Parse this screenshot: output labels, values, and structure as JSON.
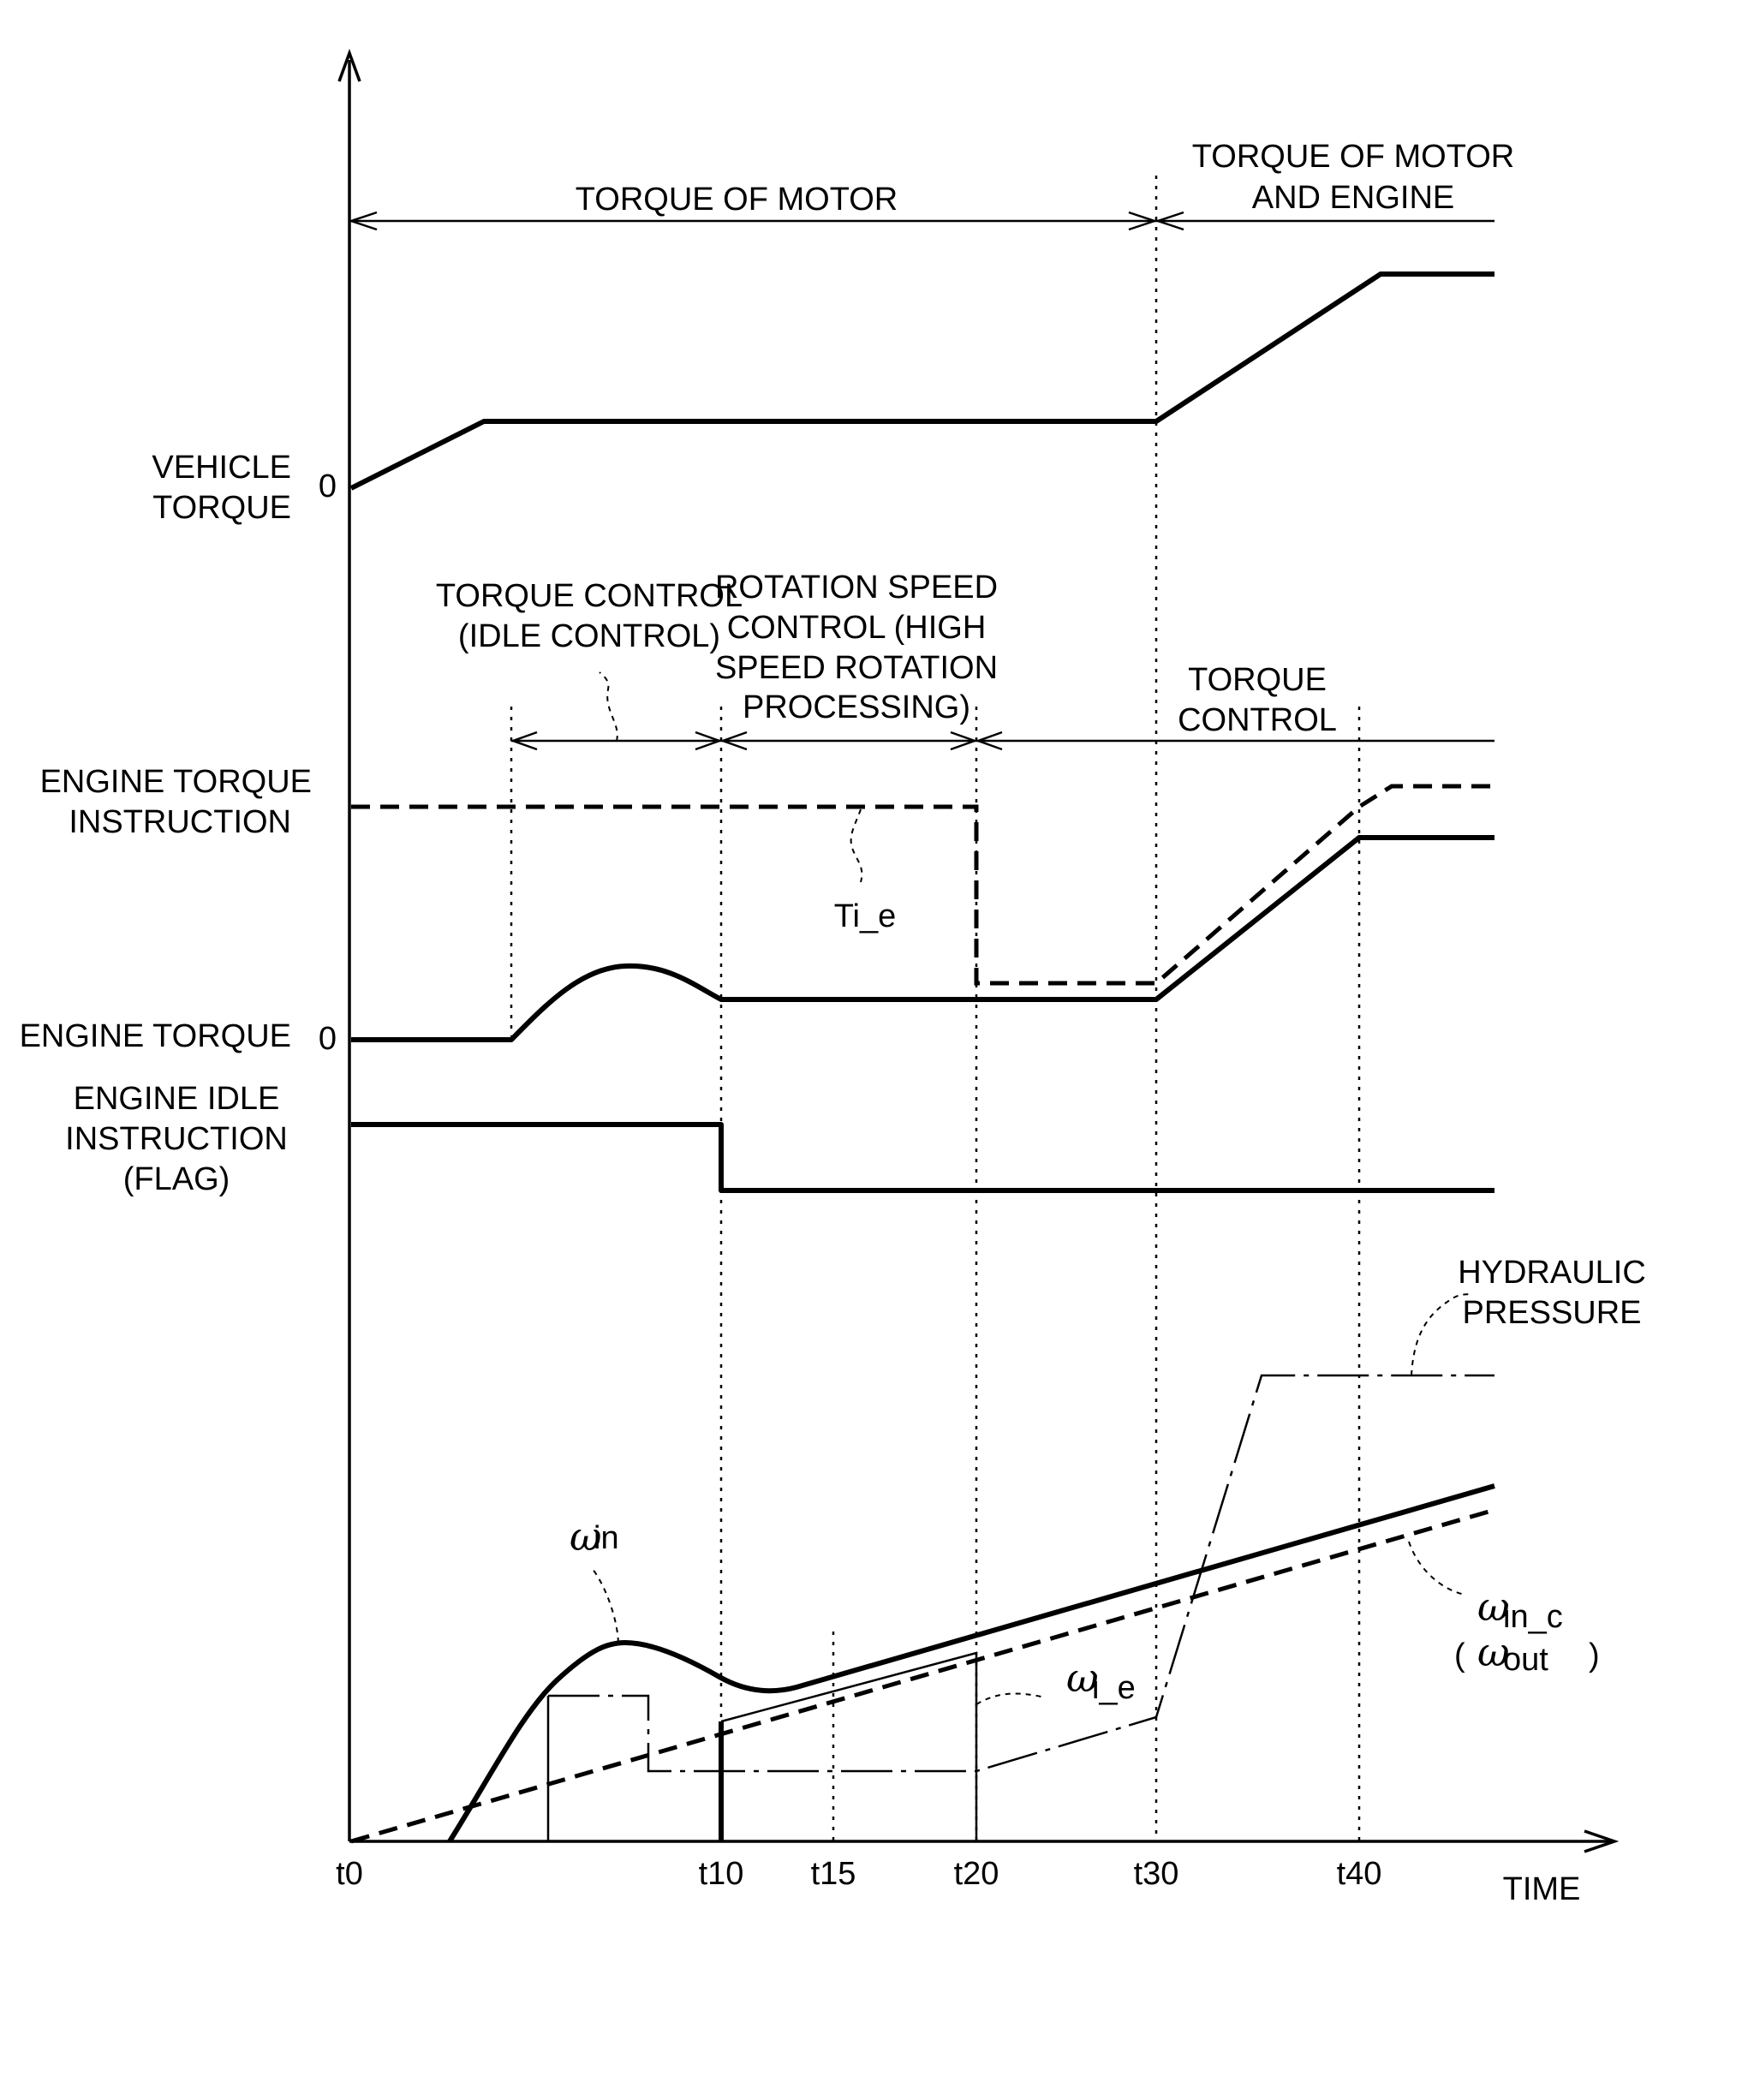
{
  "time_axis": {
    "label": "TIME",
    "ticks": [
      "t0",
      "t10",
      "t15",
      "t20",
      "t30",
      "t40"
    ]
  },
  "phases": {
    "motor": "TORQUE OF MOTOR",
    "motor_engine_1": "TORQUE OF MOTOR",
    "motor_engine_2": "AND ENGINE",
    "torque_idle_1": "TORQUE CONTROL",
    "torque_idle_2": "(IDLE CONTROL)",
    "rotation_1": "ROTATION SPEED",
    "rotation_2": "CONTROL (HIGH",
    "rotation_3": "SPEED ROTATION",
    "rotation_4": "PROCESSING)",
    "torque_control_1": "TORQUE",
    "torque_control_2": "CONTROL"
  },
  "row_labels": {
    "vehicle_torque_1": "VEHICLE",
    "vehicle_torque_2": "TORQUE",
    "vehicle_zero": "0",
    "engine_torque_instruction_1": "ENGINE TORQUE",
    "engine_torque_instruction_2": "INSTRUCTION",
    "engine_torque": "ENGINE TORQUE",
    "engine_torque_zero": "0",
    "engine_idle_1": "ENGINE IDLE",
    "engine_idle_2": "INSTRUCTION",
    "engine_idle_3": "(FLAG)"
  },
  "curve_labels": {
    "ti_e": "Ti_e",
    "hydraulic_1": "HYDRAULIC",
    "hydraulic_2": "PRESSURE",
    "omega_in": "ω",
    "omega_in_sub": "in",
    "omega_ie": "ω",
    "omega_ie_sub": "i_e",
    "omega_in_c": "ω",
    "omega_in_c_sub": "in_c",
    "omega_out_open": "(",
    "omega_out": "ω",
    "omega_out_sub": "out",
    "omega_out_close": ")"
  }
}
